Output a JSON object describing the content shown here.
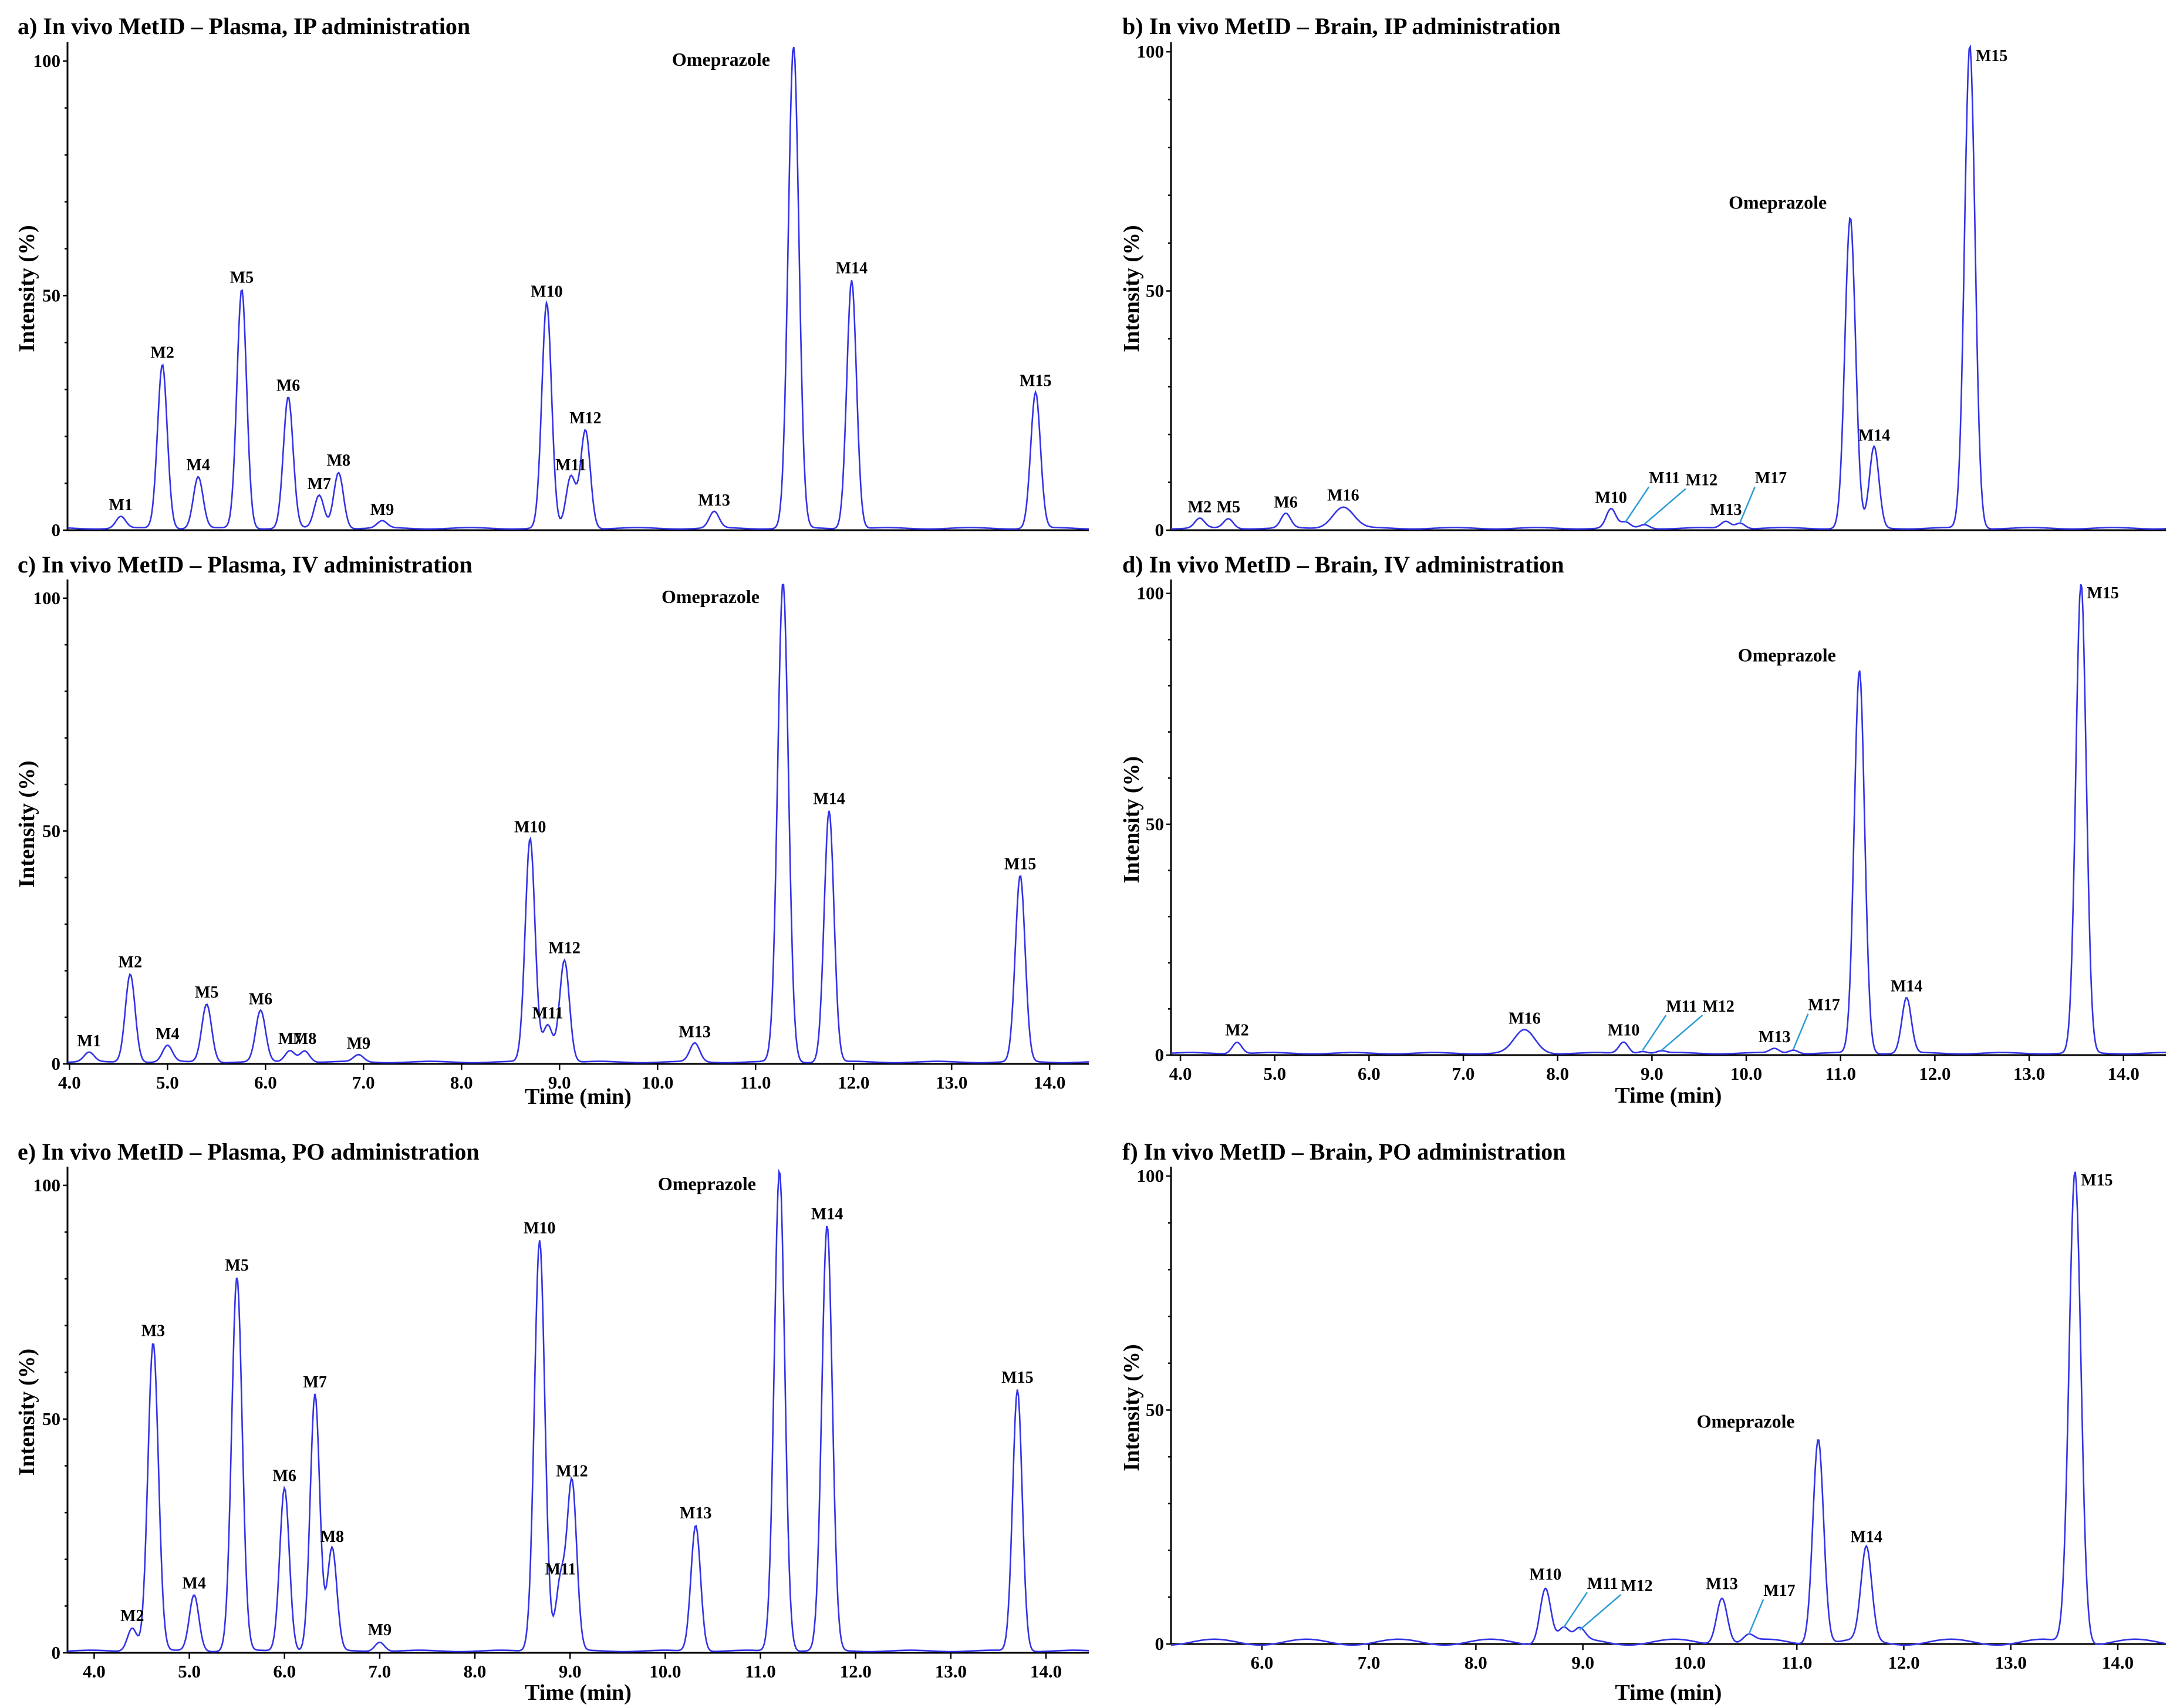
{
  "chart_data": [
    {
      "type": "line",
      "panel": "a",
      "title": "a) In vivo MetID – Plasma, IP administration",
      "ylabel": "Intensity (%)",
      "xlabel": "",
      "xlim": [
        3.8,
        14.35
      ],
      "ylim": [
        0,
        103
      ],
      "yticks": [
        "0",
        "50",
        "100"
      ],
      "xticks": [],
      "peaks": [
        {
          "label": "M1",
          "x": 4.35,
          "y": 2.5
        },
        {
          "label": "M2",
          "x": 4.78,
          "y": 35
        },
        {
          "label": "M4",
          "x": 5.15,
          "y": 11
        },
        {
          "label": "M5",
          "x": 5.6,
          "y": 51
        },
        {
          "label": "M6",
          "x": 6.08,
          "y": 28
        },
        {
          "label": "M7",
          "x": 6.4,
          "y": 7
        },
        {
          "label": "M8",
          "x": 6.6,
          "y": 12
        },
        {
          "label": "M9",
          "x": 7.05,
          "y": 1.5
        },
        {
          "label": "M10",
          "x": 8.75,
          "y": 48
        },
        {
          "label": "M11",
          "x": 9.0,
          "y": 11
        },
        {
          "label": "M12",
          "x": 9.15,
          "y": 21
        },
        {
          "label": "M13",
          "x": 10.48,
          "y": 3.5
        },
        {
          "label": "Omeprazole",
          "x": 11.3,
          "y": 103
        },
        {
          "label": "M14",
          "x": 11.9,
          "y": 53
        },
        {
          "label": "M15",
          "x": 13.8,
          "y": 29
        }
      ]
    },
    {
      "type": "line",
      "panel": "b",
      "title": "b) In vivo MetID – Brain, IP administration",
      "ylabel": "Intensity (%)",
      "xlabel": "",
      "xlim": [
        4.0,
        14.4
      ],
      "ylim": [
        0,
        101
      ],
      "yticks": [
        "0",
        "50",
        "100"
      ],
      "xticks": [],
      "peaks": [
        {
          "label": "M2",
          "x": 4.3,
          "y": 2
        },
        {
          "label": "M5",
          "x": 4.6,
          "y": 2
        },
        {
          "label": "M6",
          "x": 5.2,
          "y": 3
        },
        {
          "label": "M16",
          "x": 5.8,
          "y": 4.5
        },
        {
          "label": "M10",
          "x": 8.6,
          "y": 4
        },
        {
          "label": "M11",
          "x": 8.75,
          "y": 1.2
        },
        {
          "label": "M12",
          "x": 8.95,
          "y": 0.8
        },
        {
          "label": "M13",
          "x": 9.8,
          "y": 1.5
        },
        {
          "label": "M17",
          "x": 9.95,
          "y": 1.2
        },
        {
          "label": "Omeprazole",
          "x": 11.1,
          "y": 65
        },
        {
          "label": "M14",
          "x": 11.35,
          "y": 17
        },
        {
          "label": "M15",
          "x": 12.35,
          "y": 101
        }
      ]
    },
    {
      "type": "line",
      "panel": "c",
      "title": "c) In vivo MetID – Plasma, IV administration",
      "ylabel": "Intensity (%)",
      "xlabel": "Time (min)",
      "xlim": [
        3.98,
        14.4
      ],
      "ylim": [
        0,
        103
      ],
      "yticks": [
        "0",
        "50",
        "100"
      ],
      "xticks": [
        "4.0",
        "5.0",
        "6.0",
        "7.0",
        "8.0",
        "9.0",
        "10.0",
        "11.0",
        "12.0",
        "13.0",
        "14.0"
      ],
      "peaks": [
        {
          "label": "M1",
          "x": 4.2,
          "y": 2
        },
        {
          "label": "M2",
          "x": 4.62,
          "y": 19
        },
        {
          "label": "M4",
          "x": 5.0,
          "y": 3.5
        },
        {
          "label": "M5",
          "x": 5.4,
          "y": 12.5
        },
        {
          "label": "M6",
          "x": 5.95,
          "y": 11
        },
        {
          "label": "M7",
          "x": 6.25,
          "y": 2.5
        },
        {
          "label": "M8",
          "x": 6.4,
          "y": 2.5
        },
        {
          "label": "M9",
          "x": 6.95,
          "y": 1.5
        },
        {
          "label": "M10",
          "x": 8.7,
          "y": 48
        },
        {
          "label": "M11",
          "x": 8.88,
          "y": 8
        },
        {
          "label": "M12",
          "x": 9.05,
          "y": 22
        },
        {
          "label": "M13",
          "x": 10.38,
          "y": 4
        },
        {
          "label": "Omeprazole",
          "x": 11.28,
          "y": 103
        },
        {
          "label": "M14",
          "x": 11.75,
          "y": 54
        },
        {
          "label": "M15",
          "x": 13.7,
          "y": 40
        }
      ]
    },
    {
      "type": "line",
      "panel": "d",
      "title": "d) In vivo MetID – Brain, IV administration",
      "ylabel": "Intensity (%)",
      "xlabel": "Time (min)",
      "xlim": [
        3.9,
        14.45
      ],
      "ylim": [
        0,
        102
      ],
      "yticks": [
        "0",
        "50",
        "100"
      ],
      "xticks": [
        "4.0",
        "5.0",
        "6.0",
        "7.0",
        "8.0",
        "9.0",
        "10.0",
        "11.0",
        "12.0",
        "13.0",
        "14.0"
      ],
      "peaks": [
        {
          "label": "M2",
          "x": 4.6,
          "y": 2.5
        },
        {
          "label": "M16",
          "x": 7.65,
          "y": 5
        },
        {
          "label": "M10",
          "x": 8.7,
          "y": 2.5
        },
        {
          "label": "M11",
          "x": 8.9,
          "y": 0.5
        },
        {
          "label": "M12",
          "x": 9.1,
          "y": 0.5
        },
        {
          "label": "M13",
          "x": 10.3,
          "y": 1
        },
        {
          "label": "M17",
          "x": 10.5,
          "y": 0.8
        },
        {
          "label": "Omeprazole",
          "x": 11.2,
          "y": 83
        },
        {
          "label": "M14",
          "x": 11.7,
          "y": 12
        },
        {
          "label": "M15",
          "x": 13.55,
          "y": 102
        }
      ]
    },
    {
      "type": "line",
      "panel": "e",
      "title": "e) In vivo MetID – Plasma, PO administration",
      "ylabel": "Intensity (%)",
      "xlabel": "Time (min)",
      "xlim": [
        3.72,
        14.45
      ],
      "ylim": [
        0,
        103
      ],
      "yticks": [
        "0",
        "50",
        "100"
      ],
      "xticks": [
        "4.0",
        "5.0",
        "6.0",
        "7.0",
        "8.0",
        "9.0",
        "10.0",
        "11.0",
        "12.0",
        "13.0",
        "14.0"
      ],
      "peaks": [
        {
          "label": "M2",
          "x": 4.4,
          "y": 5
        },
        {
          "label": "M3",
          "x": 4.62,
          "y": 66
        },
        {
          "label": "M4",
          "x": 5.05,
          "y": 12
        },
        {
          "label": "M5",
          "x": 5.5,
          "y": 80
        },
        {
          "label": "M6",
          "x": 6.0,
          "y": 35
        },
        {
          "label": "M7",
          "x": 6.32,
          "y": 55
        },
        {
          "label": "M8",
          "x": 6.5,
          "y": 22
        },
        {
          "label": "M9",
          "x": 7.0,
          "y": 2
        },
        {
          "label": "M10",
          "x": 8.68,
          "y": 88
        },
        {
          "label": "M11",
          "x": 8.9,
          "y": 15
        },
        {
          "label": "M12",
          "x": 9.02,
          "y": 36
        },
        {
          "label": "M13",
          "x": 10.32,
          "y": 27
        },
        {
          "label": "Omeprazole",
          "x": 11.2,
          "y": 103
        },
        {
          "label": "M14",
          "x": 11.7,
          "y": 91
        },
        {
          "label": "M15",
          "x": 13.7,
          "y": 56
        }
      ]
    },
    {
      "type": "line",
      "panel": "f",
      "title": "f) In vivo MetID – Brain, PO administration",
      "ylabel": "Intensity (%)",
      "xlabel": "Time (min)",
      "xlim": [
        5.15,
        14.45
      ],
      "ylim": [
        0,
        101
      ],
      "yticks": [
        "0",
        "50",
        "100"
      ],
      "xticks": [
        "6.0",
        "7.0",
        "8.0",
        "9.0",
        "10.0",
        "11.0",
        "12.0",
        "13.0",
        "14.0"
      ],
      "peaks": [
        {
          "label": "M10",
          "x": 8.65,
          "y": 12
        },
        {
          "label": "M11",
          "x": 8.82,
          "y": 3
        },
        {
          "label": "M12",
          "x": 8.97,
          "y": 2.5
        },
        {
          "label": "M13",
          "x": 10.3,
          "y": 10
        },
        {
          "label": "M17",
          "x": 10.55,
          "y": 1.5
        },
        {
          "label": "Omeprazole",
          "x": 11.2,
          "y": 44
        },
        {
          "label": "M14",
          "x": 11.65,
          "y": 20
        },
        {
          "label": "M15",
          "x": 13.6,
          "y": 101
        }
      ]
    }
  ],
  "colors": {
    "trace": "#3333e6",
    "leader": "#2b9bd6"
  }
}
